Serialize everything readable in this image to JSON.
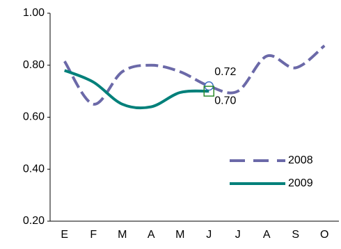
{
  "chart_data": {
    "type": "line",
    "categories": [
      "E",
      "F",
      "M",
      "A",
      "M",
      "J",
      "J",
      "A",
      "S",
      "O"
    ],
    "series": [
      {
        "name": "2008",
        "color": "#6b69a8",
        "dashed": true,
        "marker_color": "#4472c4",
        "marker": "circle",
        "values": [
          0.815,
          0.65,
          0.775,
          0.8,
          0.775,
          0.72,
          0.7,
          0.835,
          0.79,
          0.875
        ],
        "value_labels": [
          null,
          null,
          null,
          null,
          null,
          "0.72",
          null,
          null,
          null,
          null
        ]
      },
      {
        "name": "2009",
        "color": "#00807a",
        "dashed": false,
        "marker_color": "#2e8b2e",
        "marker": "square",
        "values": [
          0.78,
          0.735,
          0.65,
          0.64,
          0.695,
          0.7,
          null,
          null,
          null,
          null
        ],
        "value_labels": [
          null,
          null,
          null,
          null,
          null,
          "0.70",
          null,
          null,
          null,
          null
        ]
      }
    ],
    "ylim": [
      0.2,
      1.0
    ],
    "yticks": [
      {
        "value": 0.2,
        "label": "0.20"
      },
      {
        "value": 0.4,
        "label": "0.40"
      },
      {
        "value": 0.6,
        "label": "0.60"
      },
      {
        "value": 0.8,
        "label": "0.80"
      },
      {
        "value": 1.0,
        "label": "1.00"
      }
    ],
    "grid": false,
    "legend": "lower right"
  }
}
